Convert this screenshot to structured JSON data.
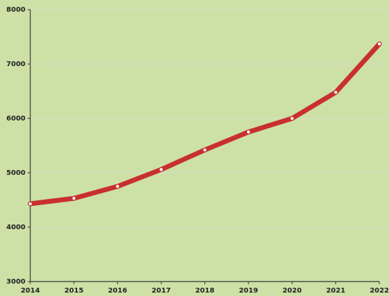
{
  "chart_data": {
    "type": "line",
    "categories": [
      "2014",
      "2015",
      "2016",
      "2017",
      "2018",
      "2019",
      "2020",
      "2021",
      "2022"
    ],
    "series": [
      {
        "color": "#c8302e",
        "values": [
          4430,
          4530,
          4750,
          5060,
          5420,
          5750,
          6000,
          6480,
          7370
        ]
      }
    ],
    "ylim": [
      3000,
      8000
    ],
    "yticks": [
      3000,
      4000,
      5000,
      6000,
      7000,
      8000
    ],
    "grid": true
  }
}
